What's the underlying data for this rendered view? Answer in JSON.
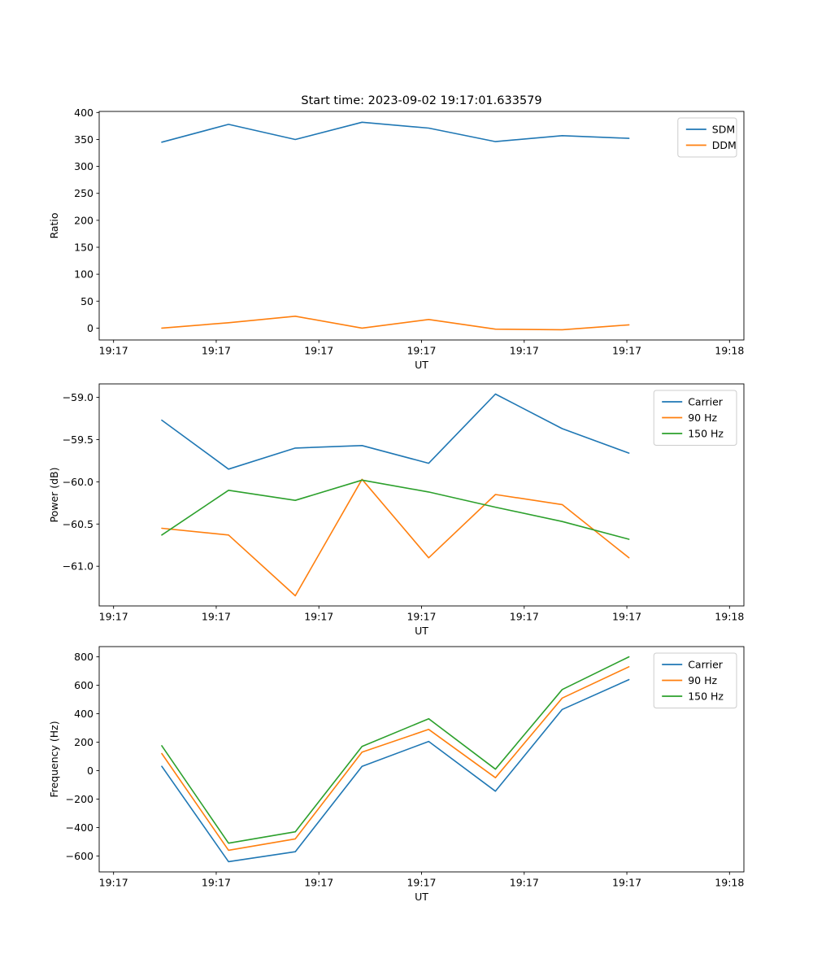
{
  "figure": {
    "title": "Start time: 2023-09-02 19:17:01.633579"
  },
  "palette": {
    "blue": "#1f77b4",
    "orange": "#ff7f0e",
    "green": "#2ca02c",
    "axis": "#000000",
    "legend_border": "#cccccc",
    "background": "#ffffff"
  },
  "chart_data": [
    {
      "id": "ratio",
      "type": "line",
      "title": "Start time: 2023-09-02 19:17:01.633579",
      "xlabel": "UT",
      "ylabel": "Ratio",
      "xlim": [
        -1.4,
        61.4
      ],
      "ylim": [
        -22,
        402
      ],
      "xticks": [
        0,
        10,
        20,
        30,
        40,
        50,
        60
      ],
      "xticklabels": [
        "19:17",
        "19:17",
        "19:17",
        "19:17",
        "19:17",
        "19:17",
        "19:18"
      ],
      "yticks": [
        0,
        50,
        100,
        150,
        200,
        250,
        300,
        350,
        400
      ],
      "yticklabels": [
        "0",
        "50",
        "100",
        "150",
        "200",
        "250",
        "300",
        "350",
        "400"
      ],
      "x": [
        4.7,
        11.2,
        17.7,
        24.2,
        30.7,
        37.2,
        43.7,
        50.2
      ],
      "series": [
        {
          "name": "SDM",
          "color": "#1f77b4",
          "values": [
            345,
            378,
            350,
            382,
            371,
            346,
            357,
            352
          ]
        },
        {
          "name": "DDM",
          "color": "#ff7f0e",
          "values": [
            0,
            10,
            22,
            0,
            16,
            -2,
            -3,
            6
          ]
        }
      ],
      "legend": {
        "position": "upper right",
        "entries": [
          "SDM",
          "DDM"
        ]
      },
      "grid": false
    },
    {
      "id": "power",
      "type": "line",
      "title": "",
      "xlabel": "UT",
      "ylabel": "Power (dB)",
      "xlim": [
        -1.4,
        61.4
      ],
      "ylim": [
        -61.47,
        -58.84
      ],
      "xticks": [
        0,
        10,
        20,
        30,
        40,
        50,
        60
      ],
      "xticklabels": [
        "19:17",
        "19:17",
        "19:17",
        "19:17",
        "19:17",
        "19:17",
        "19:18"
      ],
      "yticks": [
        -61.0,
        -60.5,
        -60.0,
        -59.5,
        -59.0
      ],
      "yticklabels": [
        "−61.0",
        "−60.5",
        "−60.0",
        "−59.5",
        "−59.0"
      ],
      "x": [
        4.7,
        11.2,
        17.7,
        24.2,
        30.7,
        37.2,
        43.7,
        50.2
      ],
      "series": [
        {
          "name": "Carrier",
          "color": "#1f77b4",
          "values": [
            -59.27,
            -59.85,
            -59.6,
            -59.57,
            -59.78,
            -58.96,
            -59.37,
            -59.66
          ]
        },
        {
          "name": "90 Hz",
          "color": "#ff7f0e",
          "values": [
            -60.55,
            -60.63,
            -61.35,
            -59.97,
            -60.9,
            -60.15,
            -60.27,
            -60.9
          ]
        },
        {
          "name": "150 Hz",
          "color": "#2ca02c",
          "values": [
            -60.63,
            -60.1,
            -60.22,
            -59.98,
            -60.12,
            -60.3,
            -60.47,
            -60.68
          ]
        }
      ],
      "legend": {
        "position": "upper right",
        "entries": [
          "Carrier",
          "90 Hz",
          "150 Hz"
        ]
      },
      "grid": false
    },
    {
      "id": "frequency",
      "type": "line",
      "title": "",
      "xlabel": "UT",
      "ylabel": "Frequency (Hz)",
      "xlim": [
        -1.4,
        61.4
      ],
      "ylim": [
        -712,
        872
      ],
      "xticks": [
        0,
        10,
        20,
        30,
        40,
        50,
        60
      ],
      "xticklabels": [
        "19:17",
        "19:17",
        "19:17",
        "19:17",
        "19:17",
        "19:17",
        "19:18"
      ],
      "yticks": [
        -600,
        -400,
        -200,
        0,
        200,
        400,
        600,
        800
      ],
      "yticklabels": [
        "−600",
        "−400",
        "−200",
        "0",
        "200",
        "400",
        "600",
        "800"
      ],
      "x": [
        4.7,
        11.2,
        17.7,
        24.2,
        30.7,
        37.2,
        43.7,
        50.2
      ],
      "series": [
        {
          "name": "Carrier",
          "color": "#1f77b4",
          "values": [
            30,
            -640,
            -570,
            30,
            205,
            -145,
            430,
            640
          ]
        },
        {
          "name": "90 Hz",
          "color": "#ff7f0e",
          "values": [
            120,
            -560,
            -480,
            130,
            290,
            -50,
            510,
            730
          ]
        },
        {
          "name": "150 Hz",
          "color": "#2ca02c",
          "values": [
            175,
            -510,
            -430,
            170,
            365,
            10,
            570,
            800
          ]
        }
      ],
      "legend": {
        "position": "upper right",
        "entries": [
          "Carrier",
          "90 Hz",
          "150 Hz"
        ]
      },
      "grid": false
    }
  ]
}
